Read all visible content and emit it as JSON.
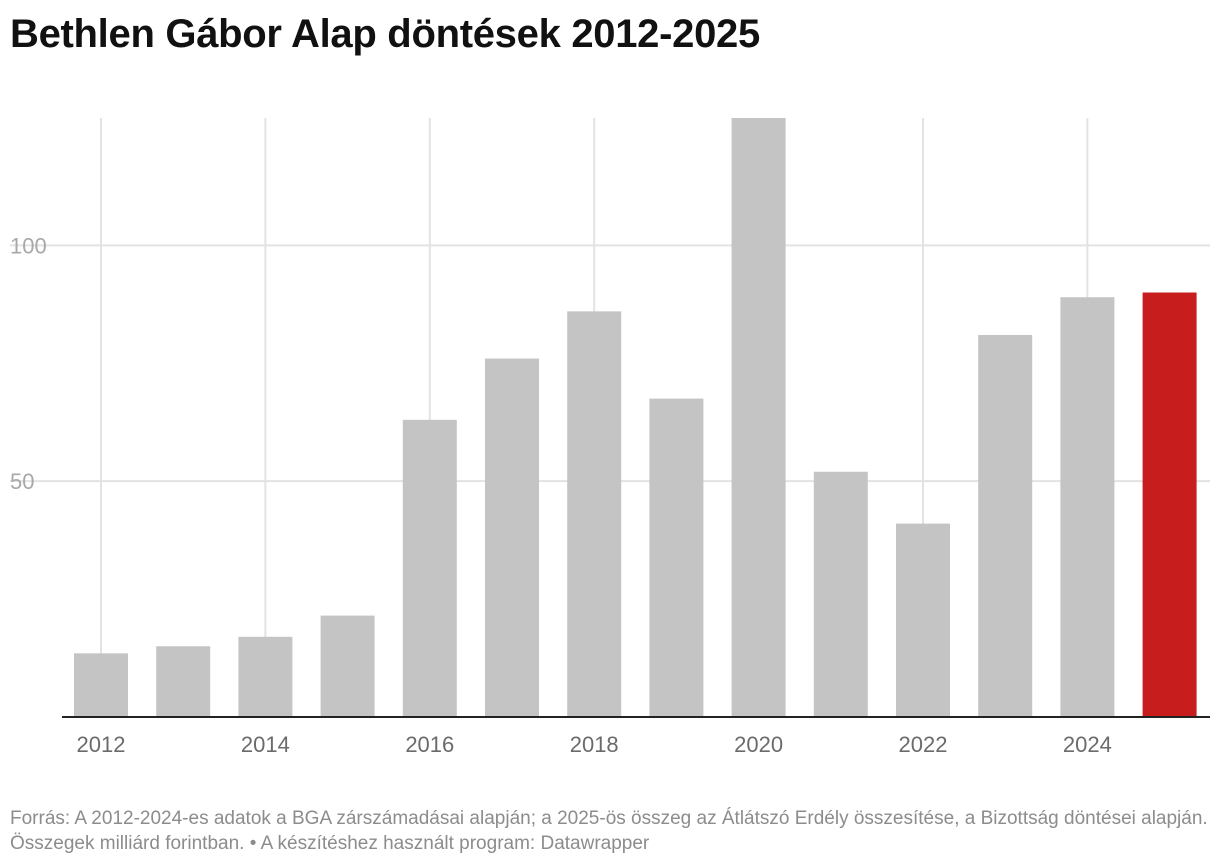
{
  "title": "Bethlen Gábor Alap döntések 2012-2025",
  "footer": {
    "source": "Forrás: A 2012-2024-es adatok a BGA zárszámadásai alapján; a 2025-ös összeg az Átlátszó Erdély összesítése, a Bizottság döntései alapján. Összegek milliárd forintban.",
    "separator": " • ",
    "tool": "A készítéshez használt program: Datawrapper"
  },
  "chart_data": {
    "type": "bar",
    "title": "Bethlen Gábor Alap döntések 2012-2025",
    "categories": [
      "2012",
      "2013",
      "2014",
      "2015",
      "2016",
      "2017",
      "2018",
      "2019",
      "2020",
      "2021",
      "2022",
      "2023",
      "2024",
      "2025"
    ],
    "series": [
      {
        "values": [
          13.5,
          15,
          17,
          21.5,
          63,
          76,
          86,
          67.5,
          127,
          52,
          41,
          81,
          89,
          90
        ]
      }
    ],
    "x_tick_labels": [
      "2012",
      "2014",
      "2016",
      "2018",
      "2020",
      "2022",
      "2024"
    ],
    "y_ticks": [
      50,
      100
    ],
    "ylim": [
      0,
      127
    ],
    "xlabel": "",
    "ylabel": "",
    "grid": true,
    "highlight_category": "2025",
    "colors": {
      "bar": "#c4c4c4",
      "highlight": "#c71e1d",
      "grid": "#e3e3e3",
      "axis": "#222222",
      "tick_text": "#a8a8a8",
      "x_tick_text": "#6b6b6b"
    }
  }
}
